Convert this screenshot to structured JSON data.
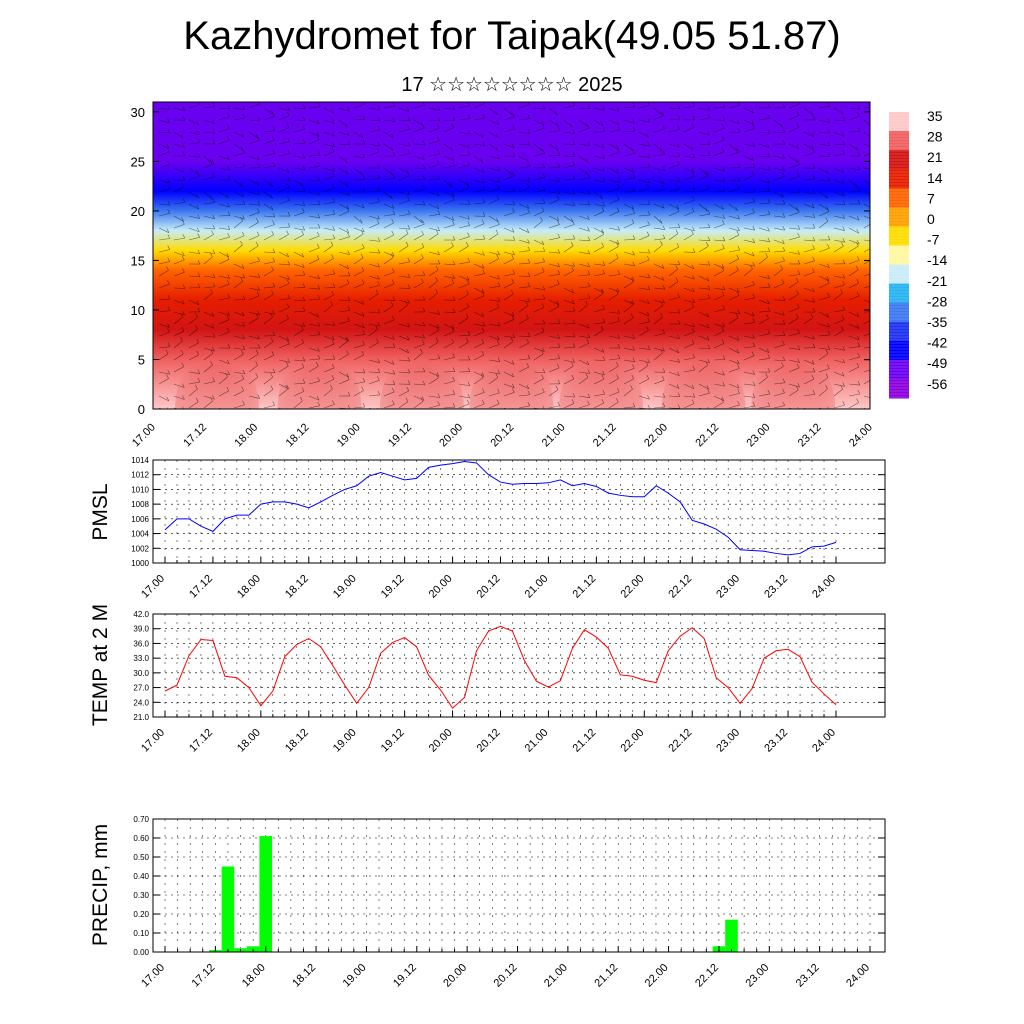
{
  "title": "Kazhydromet for Taipak(49.05 51.87)",
  "subtitle": "17 ☆☆☆☆☆☆☆☆ 2025",
  "time_labels": [
    "17.00",
    "17.12",
    "18.00",
    "18.12",
    "19.00",
    "19.12",
    "20.00",
    "20.12",
    "21.00",
    "21.12",
    "22.00",
    "22.12",
    "23.00",
    "23.12",
    "24.00"
  ],
  "chart_data": [
    {
      "type": "heatmap",
      "title": "",
      "y_ticks": [
        0,
        5,
        10,
        15,
        20,
        25,
        30
      ],
      "ylim": [
        0,
        31
      ],
      "colorbar_labels": [
        "35",
        "28",
        "21",
        "14",
        "7",
        "0",
        "-7",
        "-14",
        "-21",
        "-28",
        "-35",
        "-42",
        "-49",
        "-56"
      ],
      "colorbar_colors": [
        "#ffc8c8",
        "#f06060",
        "#d21414",
        "#e61e00",
        "#ff6400",
        "#ffa000",
        "#ffdc00",
        "#fff8a0",
        "#c8ecf8",
        "#28b4f0",
        "#3c78f0",
        "#1e32f0",
        "#0000ff",
        "#6a00f0",
        "#8c00dc"
      ],
      "vertical_profile": [
        {
          "level": 0,
          "value": 33
        },
        {
          "level": 5,
          "value": 26
        },
        {
          "level": 8,
          "value": 20
        },
        {
          "level": 11,
          "value": 12
        },
        {
          "level": 14,
          "value": 3
        },
        {
          "level": 16,
          "value": -8
        },
        {
          "level": 18,
          "value": -22
        },
        {
          "level": 20,
          "value": -36
        },
        {
          "level": 22,
          "value": -48
        },
        {
          "level": 25,
          "value": -56
        },
        {
          "level": 28,
          "value": -54
        },
        {
          "level": 31,
          "value": -52
        }
      ],
      "warm_cores": [
        {
          "time": 2.5,
          "value": 36
        },
        {
          "time": 6.5,
          "value": 35
        },
        {
          "time": 10.5,
          "value": 36
        },
        {
          "time": 14.0,
          "value": 37
        },
        {
          "time": 17.5,
          "value": 37
        },
        {
          "time": 21.5,
          "value": 36
        },
        {
          "time": 25.0,
          "value": 35
        }
      ]
    },
    {
      "type": "line",
      "ylabel": "PMSL",
      "ylim": [
        1000,
        1014
      ],
      "y_ticks": [
        1000,
        1002,
        1004,
        1006,
        1008,
        1010,
        1012,
        1014
      ],
      "color": "#0000ff",
      "x": [
        0,
        1,
        2,
        3,
        4,
        5,
        6,
        7,
        8,
        9,
        10,
        11,
        12,
        13,
        14,
        15,
        16,
        17,
        18,
        19,
        20,
        21,
        22,
        23,
        24,
        25,
        26,
        27,
        28,
        29,
        30,
        31,
        32,
        33,
        34,
        35,
        36,
        37,
        38,
        39,
        40,
        41,
        42,
        43,
        44,
        45,
        46,
        47,
        48,
        49,
        50,
        51,
        52,
        53,
        54,
        55,
        56
      ],
      "values": [
        1004.5,
        1006,
        1006,
        1005,
        1004.3,
        1006,
        1006.5,
        1006.5,
        1008,
        1008.3,
        1008.3,
        1008,
        1007.5,
        1008.3,
        1009.2,
        1010,
        1010.5,
        1011.8,
        1012.3,
        1011.8,
        1011.3,
        1011.5,
        1013,
        1013.3,
        1013.5,
        1013.8,
        1013.6,
        1012,
        1011,
        1010.7,
        1010.8,
        1010.8,
        1010.9,
        1011.3,
        1010.5,
        1010.8,
        1010.4,
        1009.5,
        1009.2,
        1009,
        1009,
        1010.5,
        1009.5,
        1008.3,
        1005.8,
        1005.3,
        1004.6,
        1003.5,
        1001.8,
        1001.7,
        1001.6,
        1001.3,
        1001.1,
        1001.3,
        1002.2,
        1002.3,
        1002.8
      ]
    },
    {
      "type": "line",
      "ylabel": "TEMP at 2 M",
      "ylim": [
        21,
        42
      ],
      "y_ticks": [
        "21.0",
        "24.0",
        "27.0",
        "30.0",
        "33.0",
        "36.0",
        "39.0",
        "42.0"
      ],
      "color": "#ff0000",
      "x": [
        0,
        1,
        2,
        3,
        4,
        5,
        6,
        7,
        8,
        9,
        10,
        11,
        12,
        13,
        14,
        15,
        16,
        17,
        18,
        19,
        20,
        21,
        22,
        23,
        24,
        25,
        26,
        27,
        28,
        29,
        30,
        31,
        32,
        33,
        34,
        35,
        36,
        37,
        38,
        39,
        40,
        41,
        42,
        43,
        44,
        45,
        46,
        47,
        48,
        49,
        50,
        51,
        52,
        53,
        54,
        55,
        56
      ],
      "values": [
        26.3,
        27.5,
        33.5,
        36.8,
        36.6,
        29.3,
        29,
        27,
        23.3,
        26.3,
        33.3,
        35.8,
        37,
        35.3,
        31.5,
        27.5,
        23.8,
        27,
        34,
        36.2,
        37.2,
        35.3,
        29.5,
        26.5,
        22.8,
        25,
        34.5,
        38.5,
        39.5,
        38.5,
        32.5,
        28.3,
        27.1,
        28.4,
        35,
        38.8,
        37.3,
        35,
        29.6,
        29.3,
        28.5,
        28,
        34.5,
        37.5,
        39.2,
        37,
        29,
        27,
        23.8,
        26.8,
        33,
        34.5,
        34.8,
        33.3,
        28.1,
        25.7,
        23.5
      ]
    },
    {
      "type": "bar",
      "ylabel": "PRECIP, mm",
      "ylim": [
        0,
        0.7
      ],
      "y_ticks": [
        "0.00",
        "0.10",
        "0.20",
        "0.30",
        "0.40",
        "0.50",
        "0.60",
        "0.70"
      ],
      "color": "#00ff00",
      "bars": [
        {
          "x": 4,
          "value": 0.01
        },
        {
          "x": 5,
          "value": 0.45
        },
        {
          "x": 6,
          "value": 0.02
        },
        {
          "x": 7,
          "value": 0.03
        },
        {
          "x": 8,
          "value": 0.61
        },
        {
          "x": 44,
          "value": 0.03
        },
        {
          "x": 45,
          "value": 0.17
        }
      ]
    }
  ]
}
